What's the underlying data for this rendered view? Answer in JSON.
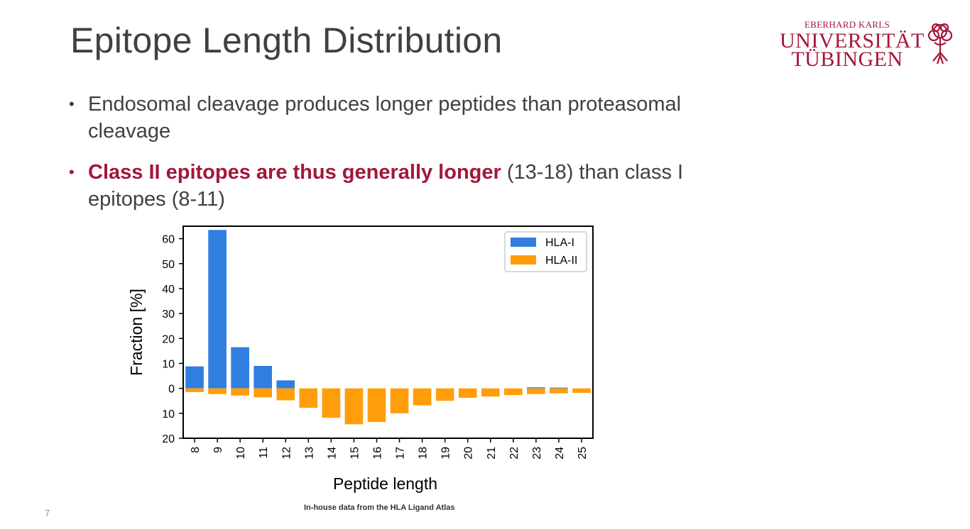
{
  "slide": {
    "title": "Epitope Length Distribution",
    "page_number": "7",
    "caption": "In-house data from the HLA Ligand Atlas"
  },
  "logo": {
    "line1": "EBERHARD KARLS",
    "line2": "UNIVERSITÄT",
    "line3": "TÜBINGEN",
    "color": "#a3173a"
  },
  "bullets": [
    {
      "dot": "•",
      "text": "Endosomal cleavage produces longer peptides than proteasomal cleavage"
    },
    {
      "dot": "•",
      "emph": "Class II epitopes are thus generally longer",
      "rest": " (13-18) than class I epitopes (8-11)"
    }
  ],
  "colors": {
    "accent": "#a3173a",
    "text": "#404040"
  },
  "chart_data": {
    "type": "bar",
    "title": "",
    "xlabel": "Peptide length",
    "ylabel": "Fraction [%]",
    "categories": [
      "8",
      "9",
      "10",
      "11",
      "12",
      "13",
      "14",
      "15",
      "16",
      "17",
      "18",
      "19",
      "20",
      "21",
      "22",
      "23",
      "24",
      "25"
    ],
    "series": [
      {
        "name": "HLA-I",
        "color": "#2f7ee0",
        "direction": "up",
        "values": [
          8.8,
          63.5,
          16.5,
          9.0,
          3.2,
          0,
          0,
          0,
          0,
          0,
          0,
          0,
          0,
          0,
          0,
          0.4,
          0.3,
          0
        ]
      },
      {
        "name": "HLA-II",
        "color": "#ff9e0a",
        "direction": "down",
        "values": [
          1.5,
          2.3,
          2.9,
          3.6,
          4.8,
          7.8,
          11.8,
          14.4,
          13.5,
          10.0,
          6.8,
          5.0,
          3.8,
          3.3,
          2.7,
          2.3,
          2.0,
          1.8
        ]
      }
    ],
    "ylim": [
      -20,
      65
    ],
    "yticks": [
      60,
      50,
      40,
      30,
      20,
      10,
      0,
      -10,
      -20
    ],
    "ytick_labels": [
      "60",
      "50",
      "40",
      "30",
      "20",
      "10",
      "0",
      "10",
      "20"
    ],
    "legend": {
      "position": "top-right"
    },
    "grid": false
  }
}
